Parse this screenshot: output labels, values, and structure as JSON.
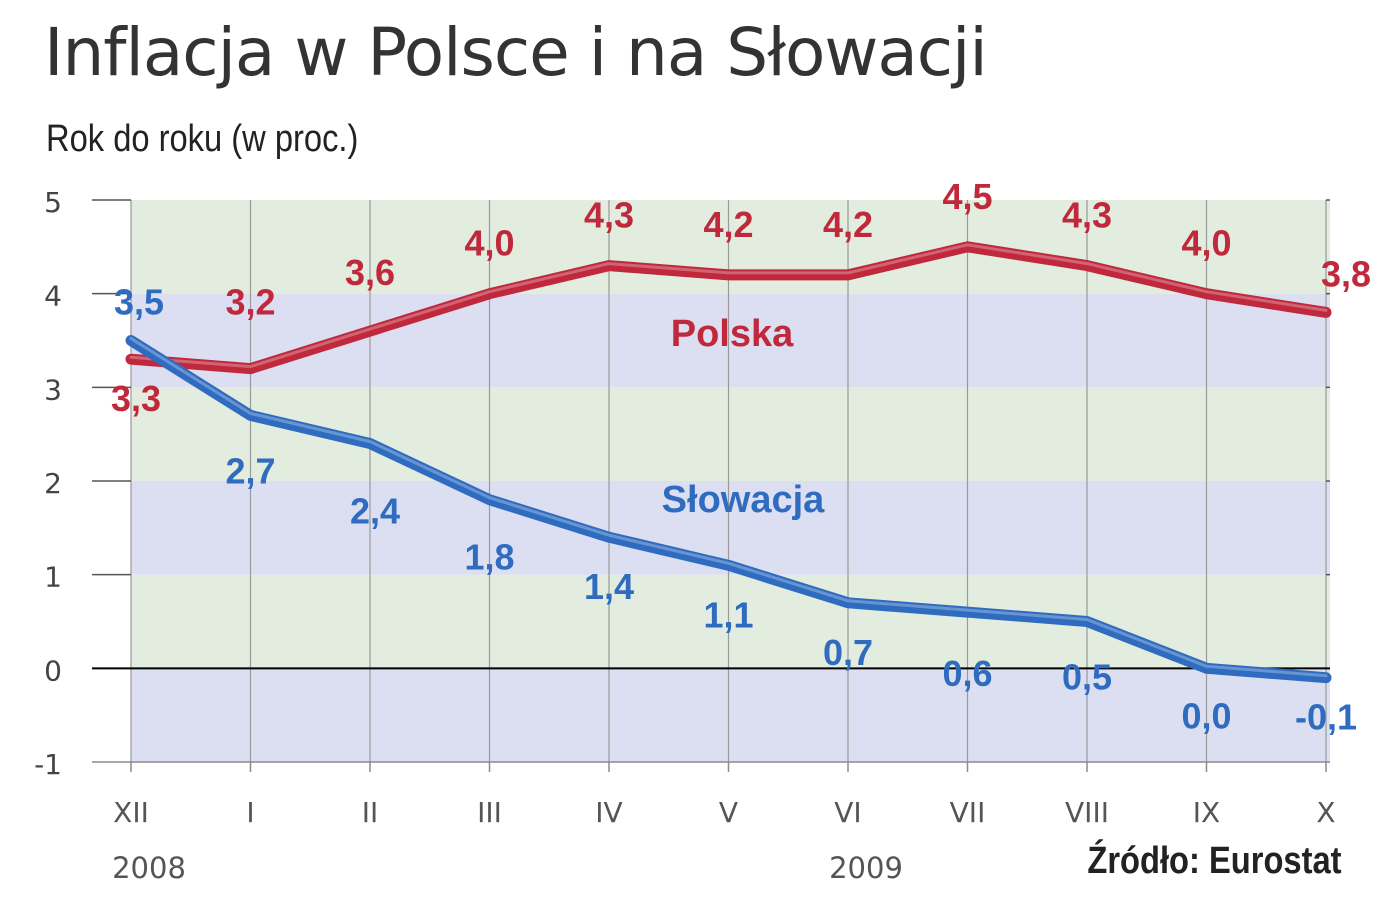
{
  "chart_data": {
    "type": "line",
    "title": "Inflacja w Polsce i na Słowacji",
    "subtitle": "Rok do roku (w proc.)",
    "categories": [
      "XII",
      "I",
      "II",
      "III",
      "IV",
      "V",
      "VI",
      "VII",
      "VIII",
      "IX",
      "X"
    ],
    "year_labels": [
      {
        "text": "2008",
        "category": "XII"
      },
      {
        "text": "2009",
        "category": "VI"
      }
    ],
    "yticks": [
      "5",
      "4",
      "3",
      "2",
      "1",
      "0",
      "-1"
    ],
    "ylim": [
      -1,
      5
    ],
    "series": [
      {
        "name": "Polska",
        "color": "#c0283c",
        "values": [
          3.3,
          3.2,
          3.6,
          4.0,
          4.3,
          4.2,
          4.2,
          4.5,
          4.3,
          4.0,
          3.8
        ],
        "labels": [
          "3,3",
          "3,2",
          "3,6",
          "4,0",
          "4,3",
          "4,2",
          "4,2",
          "4,5",
          "4,3",
          "4,0",
          "3,8"
        ]
      },
      {
        "name": "Słowacja",
        "color": "#2f6cc0",
        "values": [
          3.5,
          2.7,
          2.4,
          1.8,
          1.4,
          1.1,
          0.7,
          0.6,
          0.5,
          0.0,
          -0.1
        ],
        "labels": [
          "3,5",
          "2,7",
          "2,4",
          "1,8",
          "1,4",
          "1,1",
          "0,7",
          "0,6",
          "0,5",
          "0,0",
          "-0,1"
        ]
      }
    ],
    "bands": [
      "#e2ecdf",
      "#dcdff1"
    ],
    "source": "Źródło: Eurostat"
  }
}
